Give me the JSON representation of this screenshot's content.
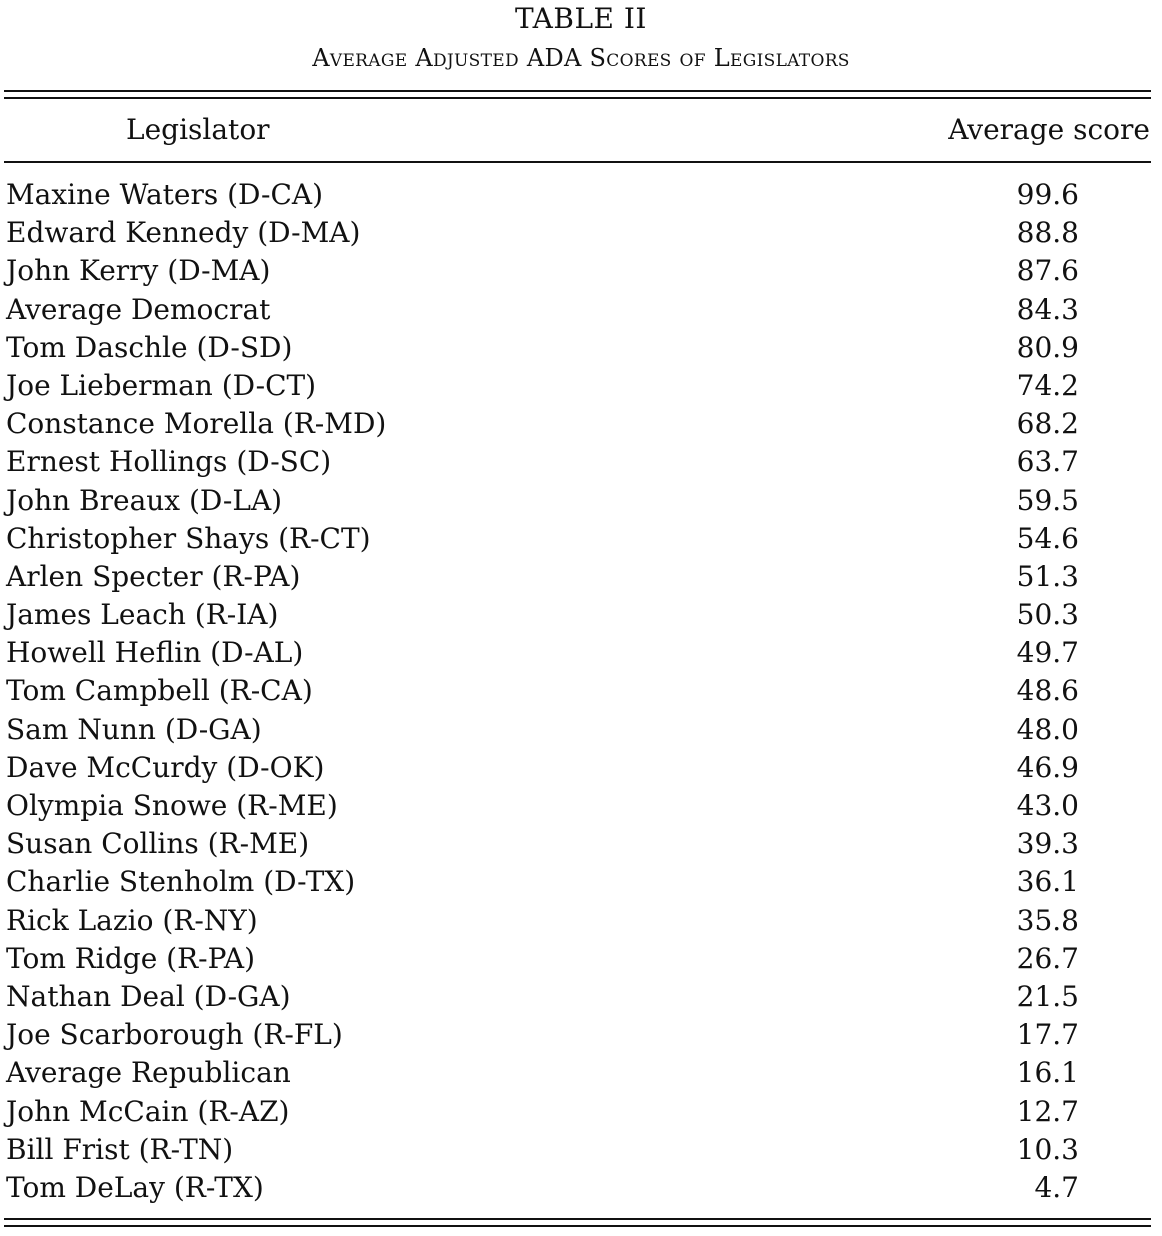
{
  "table": {
    "number": "TABLE II",
    "caption": "Average Adjusted ADA Scores of Legislators",
    "headers": {
      "legislator": "Legislator",
      "score": "Average score"
    },
    "rows": [
      {
        "legislator": "Maxine Waters (D-CA)",
        "score": "99.6"
      },
      {
        "legislator": "Edward Kennedy (D-MA)",
        "score": "88.8"
      },
      {
        "legislator": "John Kerry (D-MA)",
        "score": "87.6"
      },
      {
        "legislator": "Average Democrat",
        "score": "84.3"
      },
      {
        "legislator": "Tom Daschle (D-SD)",
        "score": "80.9"
      },
      {
        "legislator": "Joe Lieberman (D-CT)",
        "score": "74.2"
      },
      {
        "legislator": "Constance Morella (R-MD)",
        "score": "68.2"
      },
      {
        "legislator": "Ernest Hollings (D-SC)",
        "score": "63.7"
      },
      {
        "legislator": "John Breaux (D-LA)",
        "score": "59.5"
      },
      {
        "legislator": "Christopher Shays (R-CT)",
        "score": "54.6"
      },
      {
        "legislator": "Arlen Specter (R-PA)",
        "score": "51.3"
      },
      {
        "legislator": "James Leach (R-IA)",
        "score": "50.3"
      },
      {
        "legislator": "Howell Heflin (D-AL)",
        "score": "49.7"
      },
      {
        "legislator": "Tom Campbell (R-CA)",
        "score": "48.6"
      },
      {
        "legislator": "Sam Nunn (D-GA)",
        "score": "48.0"
      },
      {
        "legislator": "Dave McCurdy (D-OK)",
        "score": "46.9"
      },
      {
        "legislator": "Olympia Snowe (R-ME)",
        "score": "43.0"
      },
      {
        "legislator": "Susan Collins (R-ME)",
        "score": "39.3"
      },
      {
        "legislator": "Charlie Stenholm (D-TX)",
        "score": "36.1"
      },
      {
        "legislator": "Rick Lazio (R-NY)",
        "score": "35.8"
      },
      {
        "legislator": "Tom Ridge (R-PA)",
        "score": "26.7"
      },
      {
        "legislator": "Nathan Deal (D-GA)",
        "score": "21.5"
      },
      {
        "legislator": "Joe Scarborough (R-FL)",
        "score": "17.7"
      },
      {
        "legislator": "Average Republican",
        "score": "16.1"
      },
      {
        "legislator": "John McCain (R-AZ)",
        "score": "12.7"
      },
      {
        "legislator": "Bill Frist (R-TN)",
        "score": "10.3"
      },
      {
        "legislator": "Tom DeLay (R-TX)",
        "score": "4.7"
      }
    ]
  }
}
